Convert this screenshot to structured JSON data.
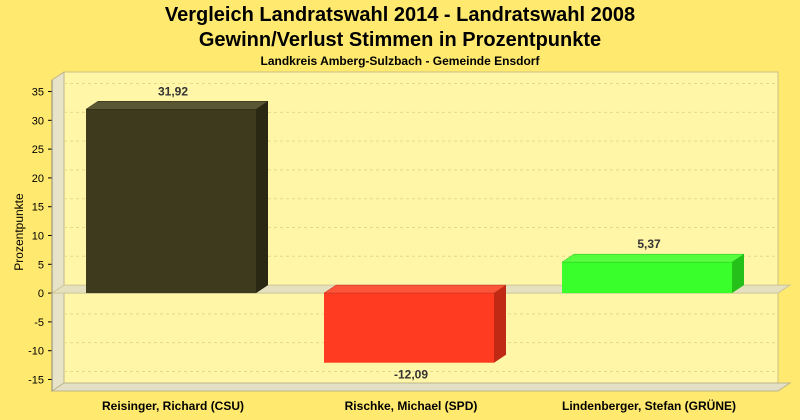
{
  "chart_data": {
    "type": "bar",
    "title": "Vergleich Landratswahl 2014 - Landratswahl 2008",
    "subtitle_line2": "Gewinn/Verlust Stimmen in Prozentpunkte",
    "subtitle": "Landkreis Amberg-Sulzbach - Gemeinde Ensdorf",
    "ylabel": "Prozentpunkte",
    "xlabel": "",
    "categories": [
      "Reisinger, Richard (CSU)",
      "Rischke, Michael (SPD)",
      "Lindenberger, Stefan (GRÜNE)"
    ],
    "values": [
      31.92,
      -12.09,
      5.37
    ],
    "value_labels": [
      "31,92",
      "-12,09",
      "5,37"
    ],
    "colors": [
      "#3D3A1E",
      "#FF3B22",
      "#39FF2A"
    ],
    "side_colors": [
      "#2A2812",
      "#C02A15",
      "#26C01A"
    ],
    "ylim": [
      -17,
      37
    ],
    "yticks": [
      35,
      30,
      25,
      20,
      15,
      10,
      5,
      0,
      -5,
      -10,
      -15
    ],
    "ytick_labels": [
      "35",
      "30",
      "25",
      "20",
      "15",
      "10",
      "5",
      "0",
      "-5",
      "-10",
      "-15"
    ],
    "grid": true,
    "legend": "none",
    "background": "#FFE96E",
    "plot_background": "#FFF6A8"
  }
}
